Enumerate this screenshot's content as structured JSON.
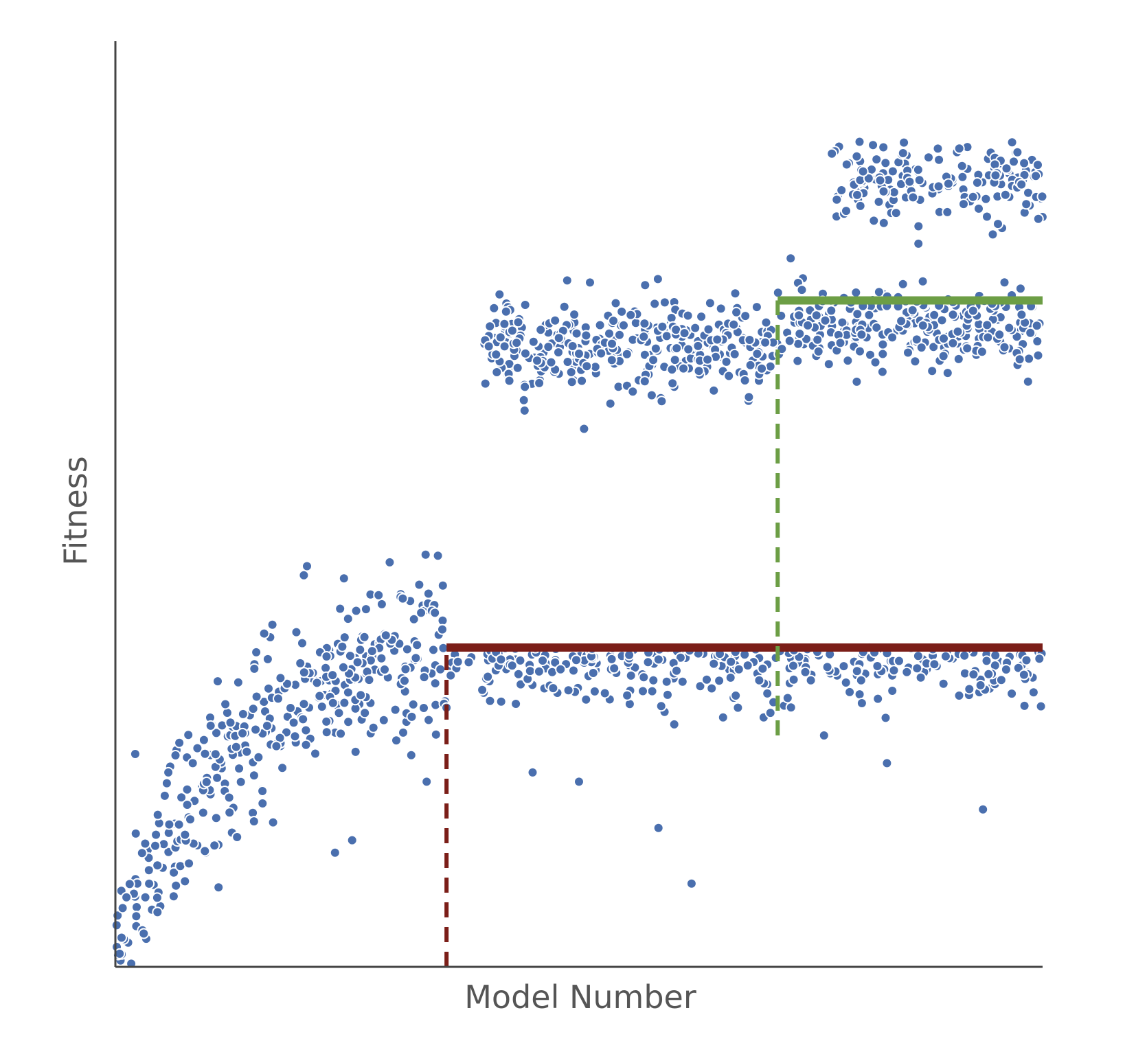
{
  "chart_data": {
    "type": "scatter",
    "title": "",
    "xlabel": "Model Number",
    "ylabel": "Fitness",
    "xlim": [
      0,
      1400
    ],
    "ylim": [
      0,
      100
    ],
    "grid": false,
    "legend": "none",
    "point_color": "#4a6fae",
    "point_edge_color": "#ffffff",
    "axis_color": "#444444",
    "clusters": [
      {
        "name": "",
        "x_range": [
          0,
          500
        ],
        "shape": "saturating",
        "y_start": 0,
        "y_end": 34,
        "spread": 4.5,
        "count": 380
      },
      {
        "name": "",
        "x_range": [
          500,
          1400
        ],
        "shape": "flat_below",
        "y_top": 34.5,
        "spread": 3.0,
        "count": 330
      },
      {
        "name": "",
        "x_range": [
          555,
          1000
        ],
        "shape": "band",
        "y_center": 67,
        "spread": 2.3,
        "count": 330
      },
      {
        "name": "",
        "x_range": [
          1000,
          1400
        ],
        "shape": "band",
        "y_center": 69,
        "spread": 2.2,
        "count": 260
      },
      {
        "name": "",
        "x_range": [
          1080,
          1400
        ],
        "shape": "band",
        "y_center": 85,
        "spread": 2.2,
        "count": 170
      }
    ],
    "outliers": [
      {
        "x": 630,
        "y": 21
      },
      {
        "x": 700,
        "y": 20
      },
      {
        "x": 820,
        "y": 15
      },
      {
        "x": 870,
        "y": 9
      },
      {
        "x": 940,
        "y": 28
      },
      {
        "x": 1165,
        "y": 22
      },
      {
        "x": 1310,
        "y": 17
      },
      {
        "x": 470,
        "y": 20
      },
      {
        "x": 30,
        "y": 23
      },
      {
        "x": 80,
        "y": 21
      },
      {
        "x": 500,
        "y": 28
      },
      {
        "x": 1070,
        "y": 25
      }
    ],
    "thresholds": [
      {
        "name": "",
        "color": "#7b1e18",
        "x": 500,
        "y": 34.5,
        "x_end": 1400,
        "y_from": 0
      },
      {
        "name": "",
        "color": "#6c9e45",
        "x": 1000,
        "y": 72,
        "x_end": 1400,
        "y_from": 25
      }
    ]
  }
}
